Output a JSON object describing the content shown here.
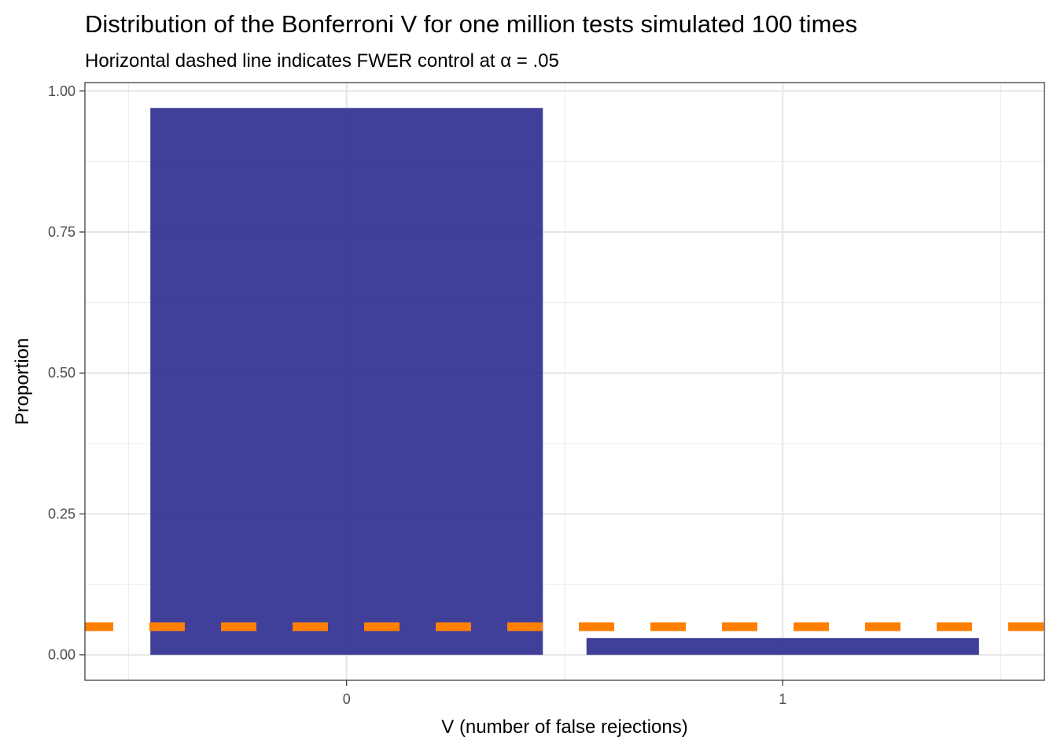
{
  "chart_data": {
    "type": "bar",
    "title": "Distribution of the Bonferroni V for one million tests simulated 100 times",
    "subtitle_prefix": "Horizontal dashed line indicates FWER control at ",
    "subtitle_symbol": "α",
    "subtitle_suffix": " = .05",
    "xlabel": "V (number of false rejections)",
    "ylabel": "Proportion",
    "categories": [
      "0",
      "1"
    ],
    "values": [
      0.97,
      0.03
    ],
    "ylim": [
      -0.045,
      1.015
    ],
    "yticks": [
      0.0,
      0.25,
      0.5,
      0.75,
      1.0
    ],
    "ytick_labels": [
      "0.00",
      "0.25",
      "0.50",
      "0.75",
      "1.00"
    ],
    "reference_line": {
      "y": 0.05,
      "style": "dashed",
      "color": "#FF7F00"
    },
    "bar_color": "#2B2B8F",
    "grid": true,
    "legend": "none"
  }
}
